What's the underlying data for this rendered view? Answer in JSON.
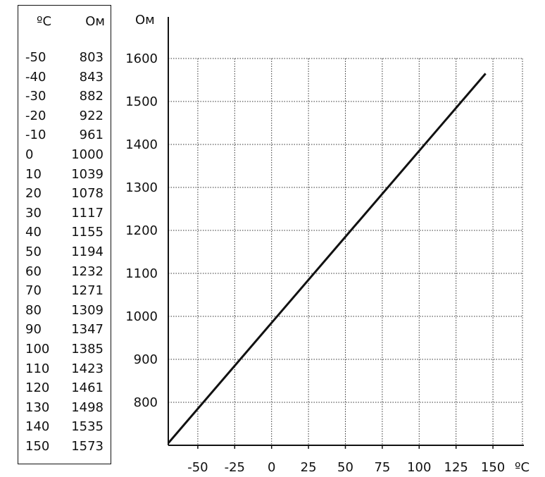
{
  "table": {
    "header_temp": "ºC",
    "header_res": "Ом",
    "rows": [
      {
        "t": "-50",
        "r": "803"
      },
      {
        "t": "-40",
        "r": "843"
      },
      {
        "t": "-30",
        "r": "882"
      },
      {
        "t": "-20",
        "r": "922"
      },
      {
        "t": "-10",
        "r": "961"
      },
      {
        "t": "0",
        "r": "1000"
      },
      {
        "t": "10",
        "r": "1039"
      },
      {
        "t": "20",
        "r": "1078"
      },
      {
        "t": "30",
        "r": "1117"
      },
      {
        "t": "40",
        "r": "1155"
      },
      {
        "t": "50",
        "r": "1194"
      },
      {
        "t": "60",
        "r": "1232"
      },
      {
        "t": "70",
        "r": "1271"
      },
      {
        "t": "80",
        "r": "1309"
      },
      {
        "t": "90",
        "r": "1347"
      },
      {
        "t": "100",
        "r": "1385"
      },
      {
        "t": "110",
        "r": "1423"
      },
      {
        "t": "120",
        "r": "1461"
      },
      {
        "t": "130",
        "r": "1498"
      },
      {
        "t": "140",
        "r": "1535"
      },
      {
        "t": "150",
        "r": "1573"
      }
    ]
  },
  "chart_data": {
    "type": "line",
    "title": "",
    "xlabel": "ºC",
    "ylabel": "Ом",
    "xlim": [
      -70,
      170
    ],
    "ylim": [
      700,
      1700
    ],
    "x_ticks": [
      "-50",
      "-25",
      "0",
      "25",
      "50",
      "75",
      "100",
      "125",
      "150"
    ],
    "y_ticks": [
      "800",
      "900",
      "1000",
      "1100",
      "1200",
      "1300",
      "1400",
      "1500",
      "1600"
    ],
    "grid": true,
    "series": [
      {
        "x": [
          -70,
          145
        ],
        "y": [
          705,
          1565
        ]
      }
    ]
  }
}
